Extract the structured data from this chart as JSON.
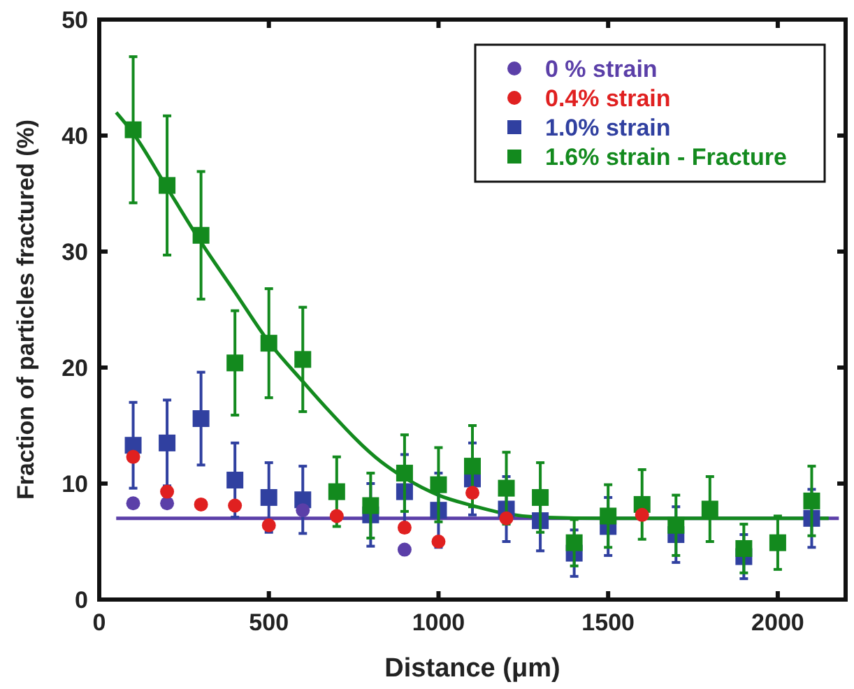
{
  "chart_data": {
    "type": "scatter",
    "xlabel": "Distance (μm)",
    "ylabel": "Fraction of particles fractured (%)",
    "xlim": [
      0,
      2200
    ],
    "xticks": [
      0,
      500,
      1000,
      1500,
      2000
    ],
    "ylim": [
      0,
      50
    ],
    "yticks": [
      0,
      10,
      20,
      30,
      40,
      50
    ],
    "grid": false,
    "legend": "top right",
    "series": [
      {
        "name": "0 % strain",
        "color": "#5b3fa8",
        "marker": "circle",
        "x": [
          100,
          200,
          600,
          900
        ],
        "values": [
          8.3,
          8.3,
          7.7,
          4.3
        ]
      },
      {
        "name": "0.4% strain",
        "color": "#e02020",
        "marker": "circle",
        "x": [
          100,
          200,
          300,
          400,
          500,
          700,
          900,
          1000,
          1100,
          1200,
          1600
        ],
        "values": [
          12.3,
          9.3,
          8.2,
          8.1,
          6.4,
          7.2,
          6.2,
          5.0,
          9.2,
          7.0,
          7.3
        ]
      },
      {
        "name": "1.0% strain",
        "color": "#3040a0",
        "marker": "square",
        "x": [
          100,
          200,
          300,
          400,
          500,
          600,
          800,
          900,
          1000,
          1100,
          1200,
          1300,
          1400,
          1500,
          1700,
          1900,
          2100
        ],
        "values": [
          13.3,
          13.5,
          15.6,
          10.3,
          8.8,
          8.6,
          7.3,
          9.3,
          7.7,
          10.4,
          7.8,
          6.8,
          4.0,
          6.3,
          5.6,
          3.7,
          7.0
        ],
        "errors": [
          3.7,
          3.7,
          4,
          3.2,
          3,
          2.9,
          2.7,
          3.2,
          3.2,
          3.1,
          2.8,
          2.6,
          2,
          2.5,
          2.4,
          1.9,
          2.5
        ]
      },
      {
        "name": "1.6% strain - Fracture",
        "color": "#138a1e",
        "marker": "square",
        "x": [
          100,
          200,
          300,
          400,
          500,
          600,
          700,
          800,
          900,
          1000,
          1100,
          1200,
          1300,
          1400,
          1500,
          1600,
          1700,
          1800,
          1900,
          2000,
          2100
        ],
        "values": [
          40.5,
          35.7,
          31.4,
          20.4,
          22.1,
          20.7,
          9.3,
          8.1,
          10.9,
          9.9,
          11.5,
          9.6,
          8.8,
          4.9,
          7.2,
          8.2,
          6.4,
          7.8,
          4.4,
          4.9,
          8.5
        ],
        "errors": [
          6.3,
          6,
          5.5,
          4.5,
          4.7,
          4.5,
          3,
          2.8,
          3.3,
          3.2,
          3.5,
          3.1,
          3,
          2,
          2.7,
          3,
          2.6,
          2.8,
          2.1,
          2.3,
          3
        ]
      },
      {
        "type": "line",
        "color": "#5b3fa8",
        "marker": "none",
        "x": [
          50,
          2180
        ],
        "values": [
          7.0,
          7.0
        ]
      },
      {
        "type": "line",
        "color": "#138a1e",
        "marker": "none",
        "x": [
          50,
          100,
          200,
          300,
          400,
          500,
          600,
          670,
          830,
          900,
          1000,
          1100,
          1200,
          1300,
          1500,
          2150
        ],
        "values": [
          42.0,
          40.2,
          35.5,
          30.8,
          26.5,
          22.2,
          18.8,
          16.5,
          11.9,
          10.5,
          9.0,
          8.1,
          7.4,
          7.1,
          7.0,
          7.0
        ]
      }
    ]
  }
}
